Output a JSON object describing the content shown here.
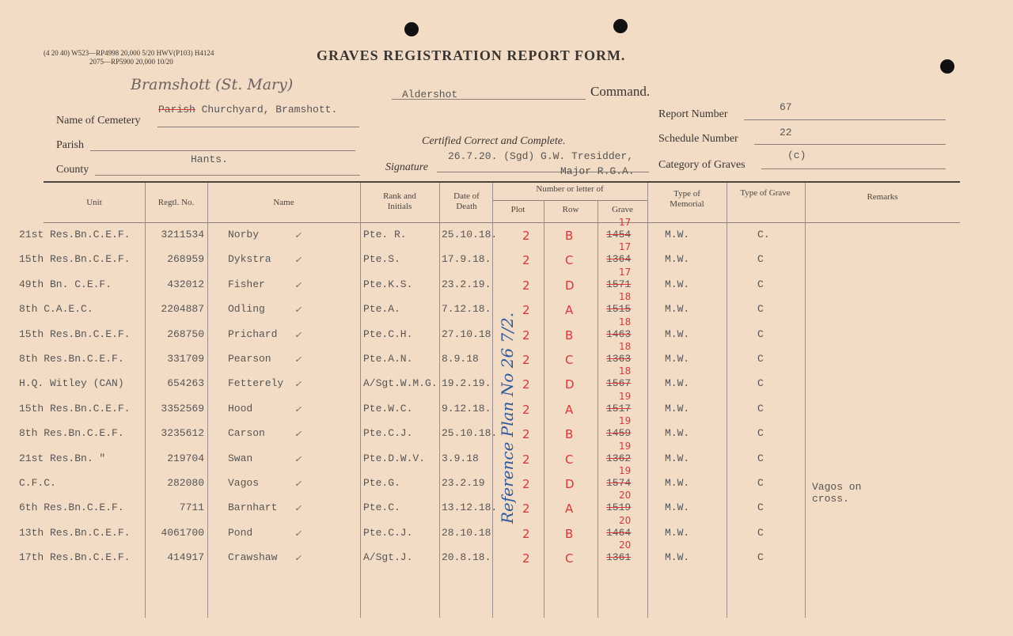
{
  "print_codes": {
    "line1": "(4 20 40)  W523—RP4998  20,000   5/20  HWV(P103)  H4124",
    "line2": "2075—RP5900  20,000  10/20"
  },
  "title": "GRAVES REGISTRATION REPORT FORM.",
  "form": {
    "command_value": "Aldershot",
    "command_label": "Command.",
    "handwritten_cemetery": "Bramshott (St. Mary)",
    "cemetery_label": "Name of Cemetery",
    "cemetery_struck": "Parish",
    "cemetery_value": "Churchyard,  Bramshott.",
    "parish_label": "Parish",
    "parish_value": "",
    "county_label": "County",
    "county_value": "Hants.",
    "certified": "Certified Correct and Complete.",
    "signature_label": "Signature",
    "signature_value": "26.7.20. (Sgd) G.W. Tresidder,",
    "signature_value2": "Major R.G.A.",
    "report_label": "Report Number",
    "report_value": "67",
    "schedule_label": "Schedule Number",
    "schedule_value": "22",
    "category_label": "Category of Graves",
    "category_value": "(c)"
  },
  "table": {
    "headers": {
      "unit": "Unit",
      "regtl": "Regtl. No.",
      "name": "Name",
      "rank": "Rank and Initials",
      "date": "Date of Death",
      "number_group": "Number or letter of",
      "plot": "Plot",
      "row": "Row",
      "grave": "Grave",
      "memorial": "Type of Memorial",
      "grave_type": "Type of Grave",
      "remarks": "Remarks"
    },
    "rows": [
      {
        "unit": "21st Res.Bn.C.E.F.",
        "regtl": "3211534",
        "name": "Norby",
        "rank": "Pte. R.",
        "date": "25.10.18.",
        "plot": "2",
        "row": "B",
        "grave_old": "1454",
        "grave_new": "17",
        "memorial": "M.W.",
        "type": "C.",
        "remarks": ""
      },
      {
        "unit": "15th Res.Bn.C.E.F.",
        "regtl": "268959",
        "name": "Dykstra",
        "rank": "Pte.S.",
        "date": "17.9.18.",
        "plot": "2",
        "row": "C",
        "grave_old": "1364",
        "grave_new": "17",
        "memorial": "M.W.",
        "type": "C",
        "remarks": ""
      },
      {
        "unit": "49th Bn. C.E.F.",
        "regtl": "432012",
        "name": "Fisher",
        "rank": "Pte.K.S.",
        "date": "23.2.19.",
        "plot": "2",
        "row": "D",
        "grave_old": "1571",
        "grave_new": "17",
        "memorial": "M.W.",
        "type": "C",
        "remarks": ""
      },
      {
        "unit": "8th C.A.E.C.",
        "regtl": "2204887",
        "name": "Odling",
        "rank": "Pte.A.",
        "date": "7.12.18.",
        "plot": "2",
        "row": "A",
        "grave_old": "1515",
        "grave_new": "18",
        "memorial": "M.W.",
        "type": "C",
        "remarks": ""
      },
      {
        "unit": "15th Res.Bn.C.E.F.",
        "regtl": "268750",
        "name": "Prichard",
        "rank": "Pte.C.H.",
        "date": "27.10.18",
        "plot": "2",
        "row": "B",
        "grave_old": "1463",
        "grave_new": "18",
        "memorial": "M.W.",
        "type": "C",
        "remarks": ""
      },
      {
        "unit": "8th Res.Bn.C.E.F.",
        "regtl": "331709",
        "name": "Pearson",
        "rank": "Pte.A.N.",
        "date": "8.9.18",
        "plot": "2",
        "row": "C",
        "grave_old": "1363",
        "grave_new": "18",
        "memorial": "M.W.",
        "type": "C",
        "remarks": ""
      },
      {
        "unit": "H.Q. Witley (CAN)",
        "regtl": "654263",
        "name": "Fetterely",
        "rank": "A/Sgt.W.M.G.",
        "date": "19.2.19.",
        "plot": "2",
        "row": "D",
        "grave_old": "1567",
        "grave_new": "18",
        "memorial": "M.W.",
        "type": "C",
        "remarks": ""
      },
      {
        "unit": "15th Res.Bn.C.E.F.",
        "regtl": "3352569",
        "name": "Hood",
        "rank": "Pte.W.C.",
        "date": "9.12.18.",
        "plot": "2",
        "row": "A",
        "grave_old": "1517",
        "grave_new": "19",
        "memorial": "M.W.",
        "type": "C",
        "remarks": ""
      },
      {
        "unit": "8th Res.Bn.C.E.F.",
        "regtl": "3235612",
        "name": "Carson",
        "rank": "Pte.C.J.",
        "date": "25.10.18.",
        "plot": "2",
        "row": "B",
        "grave_old": "1459",
        "grave_new": "19",
        "memorial": "M.W.",
        "type": "C",
        "remarks": ""
      },
      {
        "unit": "21st Res.Bn. \"",
        "regtl": "219704",
        "name": "Swan",
        "rank": "Pte.D.W.V.",
        "date": "3.9.18",
        "plot": "2",
        "row": "C",
        "grave_old": "1362",
        "grave_new": "19",
        "memorial": "M.W.",
        "type": "C",
        "remarks": ""
      },
      {
        "unit": "C.F.C.",
        "regtl": "282080",
        "name": "Vagos",
        "rank": "Pte.G.",
        "date": "23.2.19",
        "plot": "2",
        "row": "D",
        "grave_old": "1574",
        "grave_new": "19",
        "memorial": "M.W.",
        "type": "C",
        "remarks": "Vagos on cross."
      },
      {
        "unit": "6th Res.Bn.C.E.F.",
        "regtl": "7711",
        "name": "Barnhart",
        "rank": "Pte.C.",
        "date": "13.12.18.",
        "plot": "2",
        "row": "A",
        "grave_old": "1519",
        "grave_new": "20",
        "memorial": "M.W.",
        "type": "C",
        "remarks": ""
      },
      {
        "unit": "13th Res.Bn.C.E.F.",
        "regtl": "4061700",
        "name": "Pond",
        "rank": "Pte.C.J.",
        "date": "28.10.18",
        "plot": "2",
        "row": "B",
        "grave_old": "1464",
        "grave_new": "20",
        "memorial": "M.W.",
        "type": "C",
        "remarks": ""
      },
      {
        "unit": "17th Res.Bn.C.E.F.",
        "regtl": "414917",
        "name": "Crawshaw",
        "rank": "A/Sgt.J.",
        "date": "20.8.18.",
        "plot": "2",
        "row": "C",
        "grave_old": "1361",
        "grave_new": "20",
        "memorial": "M.W.",
        "type": "C",
        "remarks": ""
      }
    ]
  },
  "annotation_blue": "Reference Plan No 26 7/2.",
  "colors": {
    "paper": "#f3dcc6",
    "red_ink": "#d9363a",
    "blue_ink": "#2f5a9a",
    "type": "#555555"
  }
}
